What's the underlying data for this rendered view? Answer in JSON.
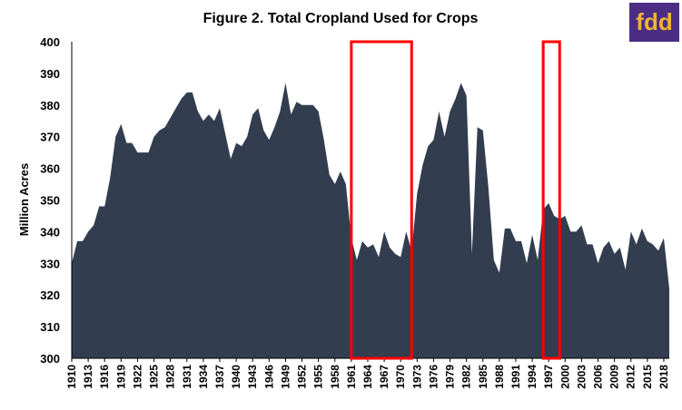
{
  "logo": {
    "text": "fdd",
    "bg": "#4b2e83",
    "fg": "#f2b431"
  },
  "colors": {
    "area": "#323d4f",
    "highlight": "#ff0000",
    "axis": "#000000"
  },
  "chart_data": {
    "type": "area",
    "title": "Figure 2. Total Cropland Used for Crops",
    "xlabel": "",
    "ylabel": "Million Acres",
    "ylim": [
      300,
      400
    ],
    "yticks": [
      300,
      310,
      320,
      330,
      340,
      350,
      360,
      370,
      380,
      390,
      400
    ],
    "xlim": [
      1910,
      2019
    ],
    "xticks": [
      1910,
      1913,
      1916,
      1919,
      1922,
      1925,
      1928,
      1931,
      1934,
      1937,
      1940,
      1943,
      1946,
      1949,
      1952,
      1955,
      1958,
      1961,
      1964,
      1967,
      1970,
      1973,
      1976,
      1979,
      1982,
      1985,
      1988,
      1991,
      1994,
      1997,
      2000,
      2003,
      2006,
      2009,
      2012,
      2015,
      2018
    ],
    "grid": false,
    "legend": "none",
    "highlight_ranges": [
      [
        1961,
        1972
      ],
      [
        1996,
        1999
      ]
    ],
    "series": [
      {
        "x": [
          1910,
          1911,
          1912,
          1913,
          1914,
          1915,
          1916,
          1917,
          1918,
          1919,
          1920,
          1921,
          1922,
          1923,
          1924,
          1925,
          1926,
          1927,
          1928,
          1929,
          1930,
          1931,
          1932,
          1933,
          1934,
          1935,
          1936,
          1937,
          1938,
          1939,
          1940,
          1941,
          1942,
          1943,
          1944,
          1945,
          1946,
          1947,
          1948,
          1949,
          1950,
          1951,
          1952,
          1953,
          1954,
          1955,
          1956,
          1957,
          1958,
          1959,
          1960,
          1961,
          1962,
          1963,
          1964,
          1965,
          1966,
          1967,
          1968,
          1969,
          1970,
          1971,
          1972,
          1973,
          1974,
          1975,
          1976,
          1977,
          1978,
          1979,
          1980,
          1981,
          1982,
          1983,
          1984,
          1985,
          1986,
          1987,
          1988,
          1989,
          1990,
          1991,
          1992,
          1993,
          1994,
          1995,
          1996,
          1997,
          1998,
          1999,
          2000,
          2001,
          2002,
          2003,
          2004,
          2005,
          2006,
          2007,
          2008,
          2009,
          2010,
          2011,
          2012,
          2013,
          2014,
          2015,
          2016,
          2017,
          2018,
          2019
        ],
        "values": [
          330,
          337,
          337,
          340,
          342,
          348,
          348,
          357,
          370,
          374,
          368,
          368,
          365,
          365,
          365,
          370,
          372,
          373,
          376,
          379,
          382,
          384,
          384,
          378,
          375,
          377,
          375,
          379,
          371,
          363,
          368,
          367,
          370,
          377,
          379,
          372,
          369,
          373,
          378,
          387,
          377,
          381,
          380,
          380,
          380,
          378,
          369,
          358,
          355,
          359,
          355,
          338,
          331,
          337,
          335,
          336,
          332,
          340,
          335,
          333,
          332,
          340,
          334,
          352,
          361,
          367,
          369,
          378,
          370,
          378,
          382,
          387,
          383,
          333,
          373,
          372,
          354,
          331,
          327,
          341,
          341,
          337,
          337,
          330,
          339,
          331,
          347,
          349,
          345,
          344,
          345,
          340,
          340,
          342,
          336,
          336,
          330,
          335,
          337,
          333,
          335,
          328,
          340,
          336,
          341,
          337,
          336,
          334,
          338,
          322
        ]
      }
    ]
  }
}
